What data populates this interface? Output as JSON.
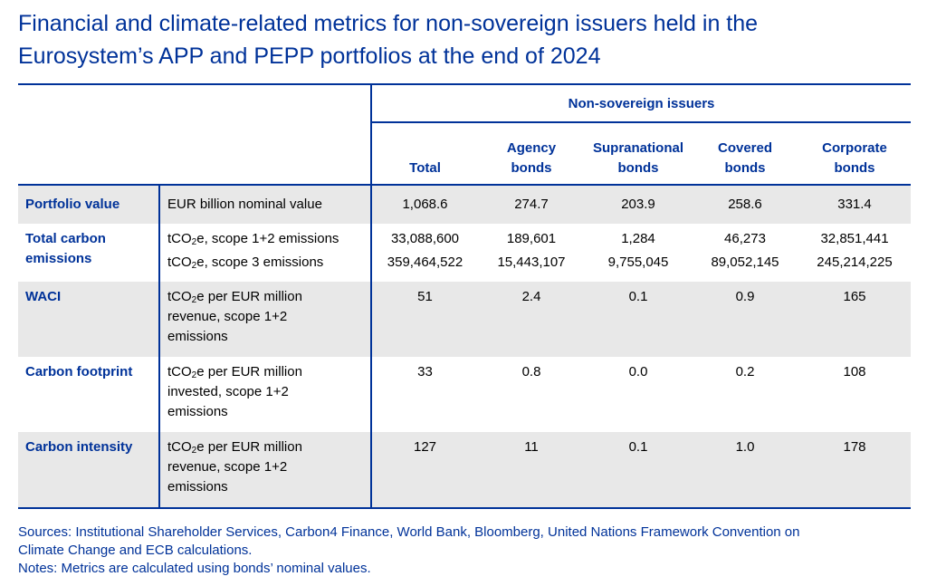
{
  "title_line1": "Financial and climate-related metrics for non-sovereign issuers held in the",
  "title_line2": "Eurosystem’s APP and PEPP portfolios at the end of 2024",
  "group_header": "Non-sovereign issuers",
  "columns": {
    "total": "Total",
    "agency_l1": "Agency",
    "agency_l2": "bonds",
    "supra_l1": "Supranational",
    "supra_l2": "bonds",
    "covered_l1": "Covered",
    "covered_l2": "bonds",
    "corp_l1": "Corporate",
    "corp_l2": "bonds"
  },
  "co2_prefix": "tCO",
  "co2_sub": "2",
  "rows": {
    "portfolio": {
      "metric": "Portfolio value",
      "unit": "EUR billion nominal value",
      "values": [
        "1,068.6",
        "274.7",
        "203.9",
        "258.6",
        "331.4"
      ]
    },
    "total_carbon": {
      "metric_l1": "Total carbon",
      "metric_l2": "emissions",
      "scope12_unit": "e, scope 1+2 emissions",
      "scope12_values": [
        "33,088,600",
        "189,601",
        "1,284",
        "46,273",
        "32,851,441"
      ],
      "scope3_unit": "e, scope 3 emissions",
      "scope3_values": [
        "359,464,522",
        "15,443,107",
        "9,755,045",
        "89,052,145",
        "245,214,225"
      ]
    },
    "waci": {
      "metric": "WACI",
      "unit_l1": "e per EUR million",
      "unit_l2": "revenue, scope 1+2",
      "unit_l3": "emissions",
      "values": [
        "51",
        "2.4",
        "0.1",
        "0.9",
        "165"
      ]
    },
    "footprint": {
      "metric": "Carbon footprint",
      "unit_l1": "e per EUR million",
      "unit_l2": "invested, scope 1+2",
      "unit_l3": "emissions",
      "values": [
        "33",
        "0.8",
        "0.0",
        "0.2",
        "108"
      ]
    },
    "intensity": {
      "metric": "Carbon intensity",
      "unit_l1": "e per EUR million",
      "unit_l2": "revenue, scope 1+2",
      "unit_l3": "emissions",
      "values": [
        "127",
        "11",
        "0.1",
        "1.0",
        "178"
      ]
    }
  },
  "sources_l1": "Sources: Institutional Shareholder Services, Carbon4 Finance, World Bank, Bloomberg, United Nations Framework Convention on",
  "sources_l2": "Climate Change and ECB calculations.",
  "notes": "Notes: Metrics are calculated using bonds’ nominal values.",
  "colors": {
    "accent": "#003299",
    "shade": "#e8e8e8"
  }
}
